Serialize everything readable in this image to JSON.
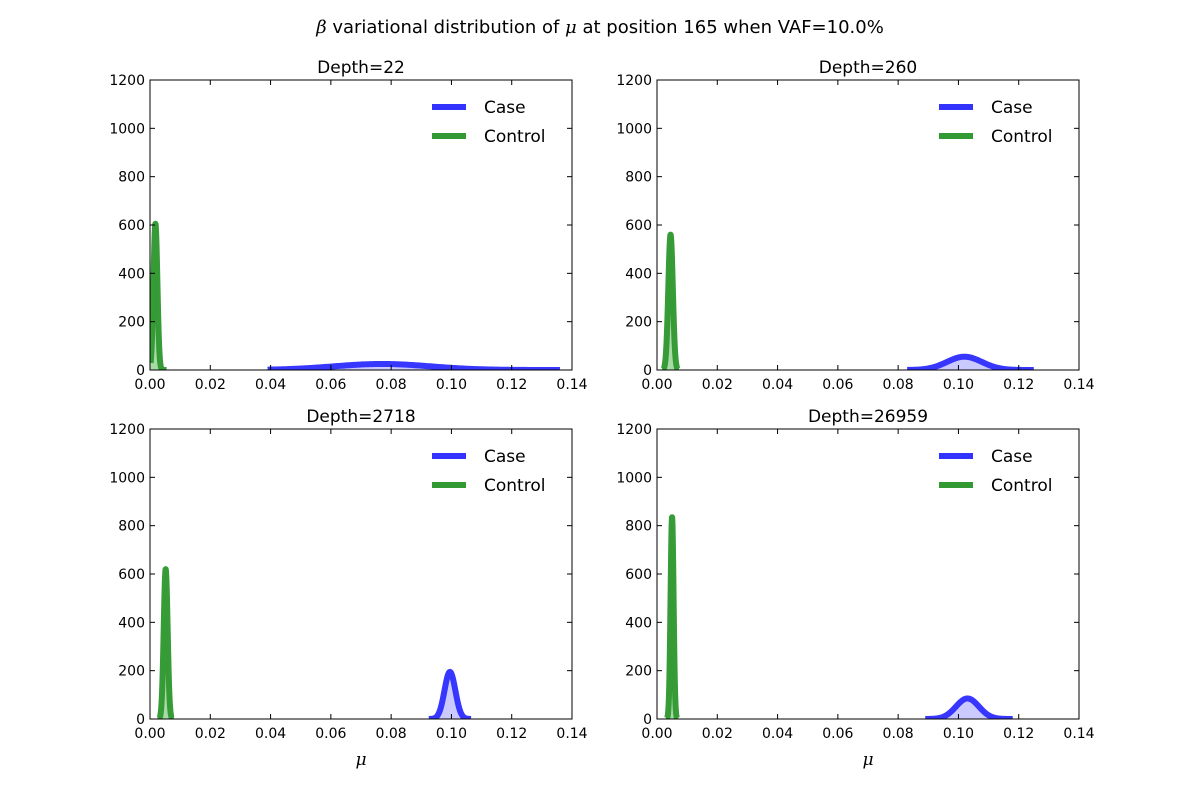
{
  "figure": {
    "title_symbol_1": "β",
    "title_middle": " variational distribution of ",
    "title_symbol_2": "μ",
    "title_end": " at position 165 when VAF=10.0%"
  },
  "chart_data": [
    {
      "type": "line",
      "title": "Depth=22",
      "xlabel": "",
      "ylabel": "",
      "xlim": [
        0,
        0.14
      ],
      "ylim": [
        0,
        1200
      ],
      "xticks": [
        "0.00",
        "0.02",
        "0.04",
        "0.06",
        "0.08",
        "0.10",
        "0.12",
        "0.14"
      ],
      "yticks": [
        "0",
        "200",
        "400",
        "600",
        "800",
        "1000",
        "1200"
      ],
      "legend": "top-right",
      "series": [
        {
          "name": "Case",
          "color": "#3333ff",
          "fill": "#c4c4ff",
          "mean": 0.077,
          "sd": 0.016,
          "peak": 25,
          "x_range": [
            0.039,
            0.136
          ]
        },
        {
          "name": "Control",
          "color": "#339933",
          "fill": "#9fd69f",
          "mean": 0.0018,
          "sd": 0.00065,
          "peak": 605,
          "x_range": [
            0.0002,
            0.0055
          ]
        }
      ]
    },
    {
      "type": "line",
      "title": "Depth=260",
      "xlabel": "",
      "ylabel": "",
      "xlim": [
        0,
        0.14
      ],
      "ylim": [
        0,
        1200
      ],
      "xticks": [
        "0.00",
        "0.02",
        "0.04",
        "0.06",
        "0.08",
        "0.10",
        "0.12",
        "0.14"
      ],
      "yticks": [
        "0",
        "200",
        "400",
        "600",
        "800",
        "1000",
        "1200"
      ],
      "legend": "top-right",
      "series": [
        {
          "name": "Case",
          "color": "#3333ff",
          "fill": "#c4c4ff",
          "mean": 0.102,
          "sd": 0.0058,
          "peak": 55,
          "x_range": [
            0.083,
            0.125
          ]
        },
        {
          "name": "Control",
          "color": "#339933",
          "fill": "#9fd69f",
          "mean": 0.0045,
          "sd": 0.00075,
          "peak": 560,
          "x_range": [
            0.0018,
            0.0072
          ]
        }
      ]
    },
    {
      "type": "line",
      "title": "Depth=2718",
      "xlabel": "μ",
      "ylabel": "",
      "xlim": [
        0,
        0.14
      ],
      "ylim": [
        0,
        1200
      ],
      "xticks": [
        "0.00",
        "0.02",
        "0.04",
        "0.06",
        "0.08",
        "0.10",
        "0.12",
        "0.14"
      ],
      "yticks": [
        "0",
        "200",
        "400",
        "600",
        "800",
        "1000",
        "1200"
      ],
      "legend": "top-right",
      "series": [
        {
          "name": "Case",
          "color": "#3333ff",
          "fill": "#c4c4ff",
          "mean": 0.0995,
          "sd": 0.0018,
          "peak": 195,
          "x_range": [
            0.0925,
            0.1065
          ]
        },
        {
          "name": "Control",
          "color": "#339933",
          "fill": "#9fd69f",
          "mean": 0.0052,
          "sd": 0.00065,
          "peak": 620,
          "x_range": [
            0.0025,
            0.0079
          ]
        }
      ]
    },
    {
      "type": "line",
      "title": "Depth=26959",
      "xlabel": "μ",
      "ylabel": "",
      "xlim": [
        0,
        0.14
      ],
      "ylim": [
        0,
        1200
      ],
      "xticks": [
        "0.00",
        "0.02",
        "0.04",
        "0.06",
        "0.08",
        "0.10",
        "0.12",
        "0.14"
      ],
      "yticks": [
        "0",
        "200",
        "400",
        "600",
        "800",
        "1000",
        "1200"
      ],
      "legend": "top-right",
      "series": [
        {
          "name": "Case",
          "color": "#3333ff",
          "fill": "#c4c4ff",
          "mean": 0.103,
          "sd": 0.0038,
          "peak": 85,
          "x_range": [
            0.089,
            0.118
          ]
        },
        {
          "name": "Control",
          "color": "#339933",
          "fill": "#9fd69f",
          "mean": 0.005,
          "sd": 0.0005,
          "peak": 835,
          "x_range": [
            0.003,
            0.007
          ]
        }
      ]
    }
  ]
}
